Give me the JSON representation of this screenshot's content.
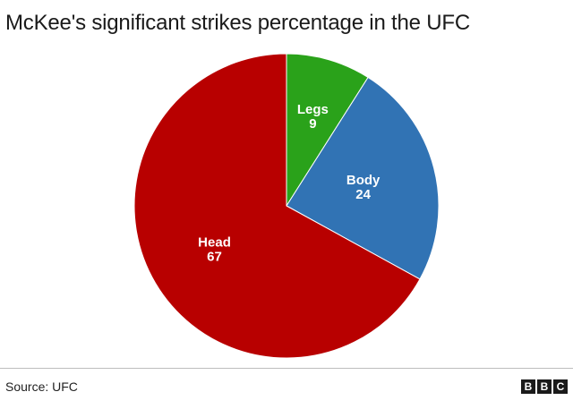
{
  "title": "McKee's significant strikes percentage in the UFC",
  "source": "Source: UFC",
  "logo": "BBC",
  "chart_data": {
    "type": "pie",
    "title": "McKee's significant strikes percentage in the UFC",
    "unit": "percent",
    "slices": [
      {
        "label": "Legs",
        "value": 9,
        "color": "#2aa21a"
      },
      {
        "label": "Body",
        "value": 24,
        "color": "#3173b4"
      },
      {
        "label": "Head",
        "value": 67,
        "color": "#b80000"
      }
    ],
    "start": "12 o'clock",
    "direction": "clockwise",
    "legend": "none",
    "data_labels": "inside slices"
  }
}
